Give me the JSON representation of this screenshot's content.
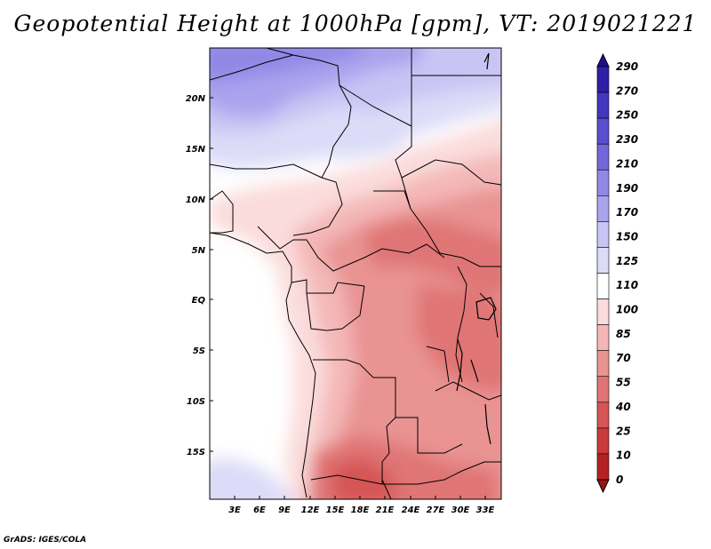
{
  "title": "Geopotential Height at 1000hPa [gpm], VT: 2019021221",
  "credit": "GrADS: IGES/COLA",
  "map": {
    "lat_labels": [
      "20N",
      "15N",
      "10N",
      "5N",
      "EQ",
      "5S",
      "10S",
      "15S"
    ],
    "lon_labels": [
      "3E",
      "6E",
      "9E",
      "12E",
      "15E",
      "18E",
      "21E",
      "24E",
      "27E",
      "30E",
      "33E"
    ]
  },
  "colorbar": {
    "levels": [
      "290",
      "270",
      "250",
      "230",
      "210",
      "190",
      "170",
      "150",
      "125",
      "110",
      "100",
      "85",
      "70",
      "55",
      "40",
      "25",
      "10",
      "0"
    ],
    "colors": [
      "#1a0f8c",
      "#2d1fa6",
      "#4436bd",
      "#5a4fd0",
      "#7467dc",
      "#9188e6",
      "#aaa3ee",
      "#c8c4f4",
      "#dcdcf8",
      "#ffffff",
      "#fbdcdc",
      "#f4b7b7",
      "#e99393",
      "#e07474",
      "#d65555",
      "#c93a3a",
      "#b52222",
      "#9c1414"
    ]
  }
}
